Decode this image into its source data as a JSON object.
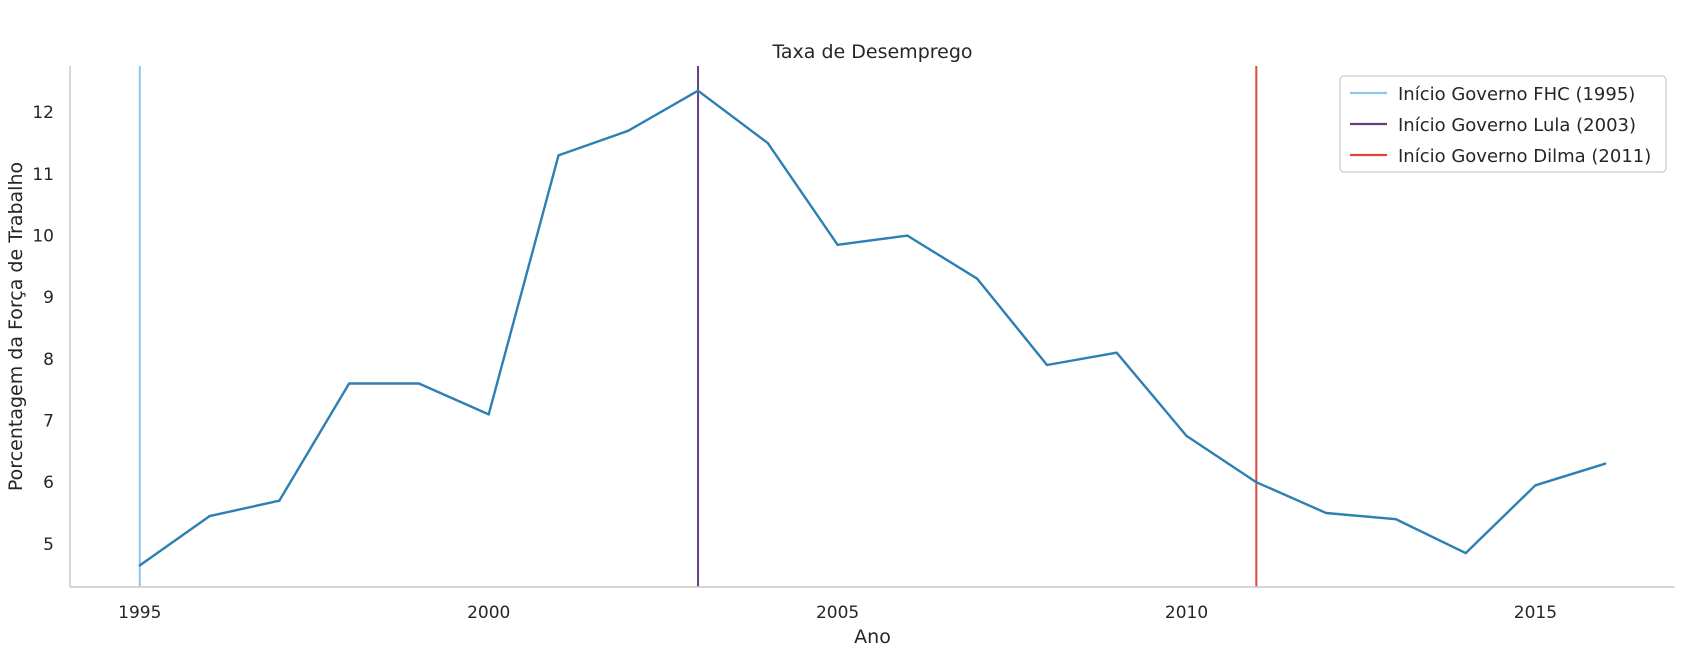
{
  "chart_data": {
    "type": "line",
    "title": "Taxa de Desemprego",
    "xlabel": "Ano",
    "ylabel": "Porcentagem da Força de Trabalho",
    "xlim": [
      1994,
      2017
    ],
    "ylim": [
      4.3,
      12.75
    ],
    "xticks": [
      1995,
      2000,
      2005,
      2010,
      2015
    ],
    "yticks": [
      5,
      6,
      7,
      8,
      9,
      10,
      11,
      12
    ],
    "grid": false,
    "legend_position": "top-right",
    "series": [
      {
        "color": "#2e7fb3",
        "x": [
          1995,
          1996,
          1997,
          1998,
          1999,
          2000,
          2001,
          2002,
          2003,
          2004,
          2005,
          2006,
          2007,
          2008,
          2009,
          2010,
          2011,
          2012,
          2013,
          2014,
          2015,
          2016
        ],
        "y": [
          4.65,
          5.45,
          5.7,
          7.6,
          7.6,
          7.1,
          11.3,
          11.7,
          12.35,
          11.5,
          9.85,
          10.0,
          9.3,
          7.9,
          8.1,
          6.75,
          6.0,
          5.5,
          5.4,
          4.85,
          5.95,
          6.3
        ]
      }
    ],
    "vlines": [
      {
        "x": 1995,
        "label": "Início Governo FHC (1995)",
        "color": "#8ec6ee"
      },
      {
        "x": 2003,
        "label": "Início Governo Lula (2003)",
        "color": "#6a3d7c"
      },
      {
        "x": 2011,
        "label": "Início Governo Dilma (2011)",
        "color": "#d9473d"
      }
    ]
  }
}
